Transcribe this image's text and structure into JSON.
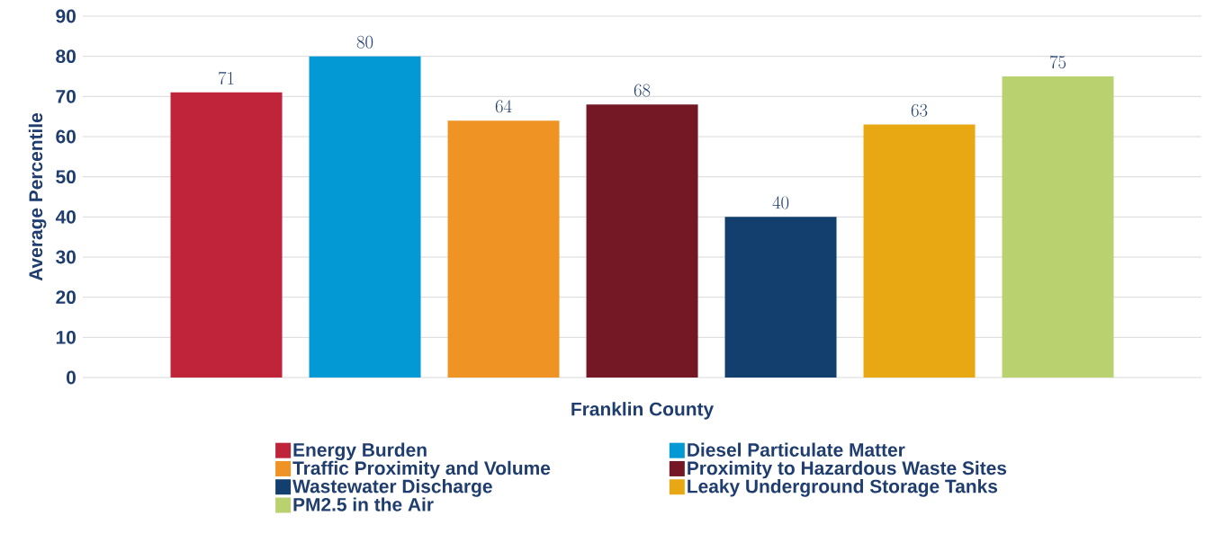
{
  "chart_data": {
    "type": "bar",
    "ylabel": "Average Percentile",
    "categories": [
      "Franklin County"
    ],
    "series": [
      {
        "name": "Energy Burden",
        "color": "#c0243a",
        "values": [
          71
        ]
      },
      {
        "name": "Diesel Particulate Matter",
        "color": "#0399d4",
        "values": [
          80
        ]
      },
      {
        "name": "Traffic Proximity and Volume",
        "color": "#ef9324",
        "values": [
          64
        ]
      },
      {
        "name": "Proximity to Hazardous Waste Sites",
        "color": "#731824",
        "values": [
          68
        ]
      },
      {
        "name": "Wastewater Discharge",
        "color": "#123f6e",
        "values": [
          40
        ]
      },
      {
        "name": "Leaky Underground Storage Tanks",
        "color": "#e8a814",
        "values": [
          63
        ]
      },
      {
        "name": "PM2.5 in the Air",
        "color": "#b9d26f",
        "values": [
          75
        ]
      }
    ],
    "ylim": [
      0,
      90
    ],
    "yticks": [
      0,
      10,
      20,
      30,
      40,
      50,
      60,
      70,
      80,
      90
    ],
    "data_labels": true,
    "grid": "y",
    "legend": "bottom"
  }
}
